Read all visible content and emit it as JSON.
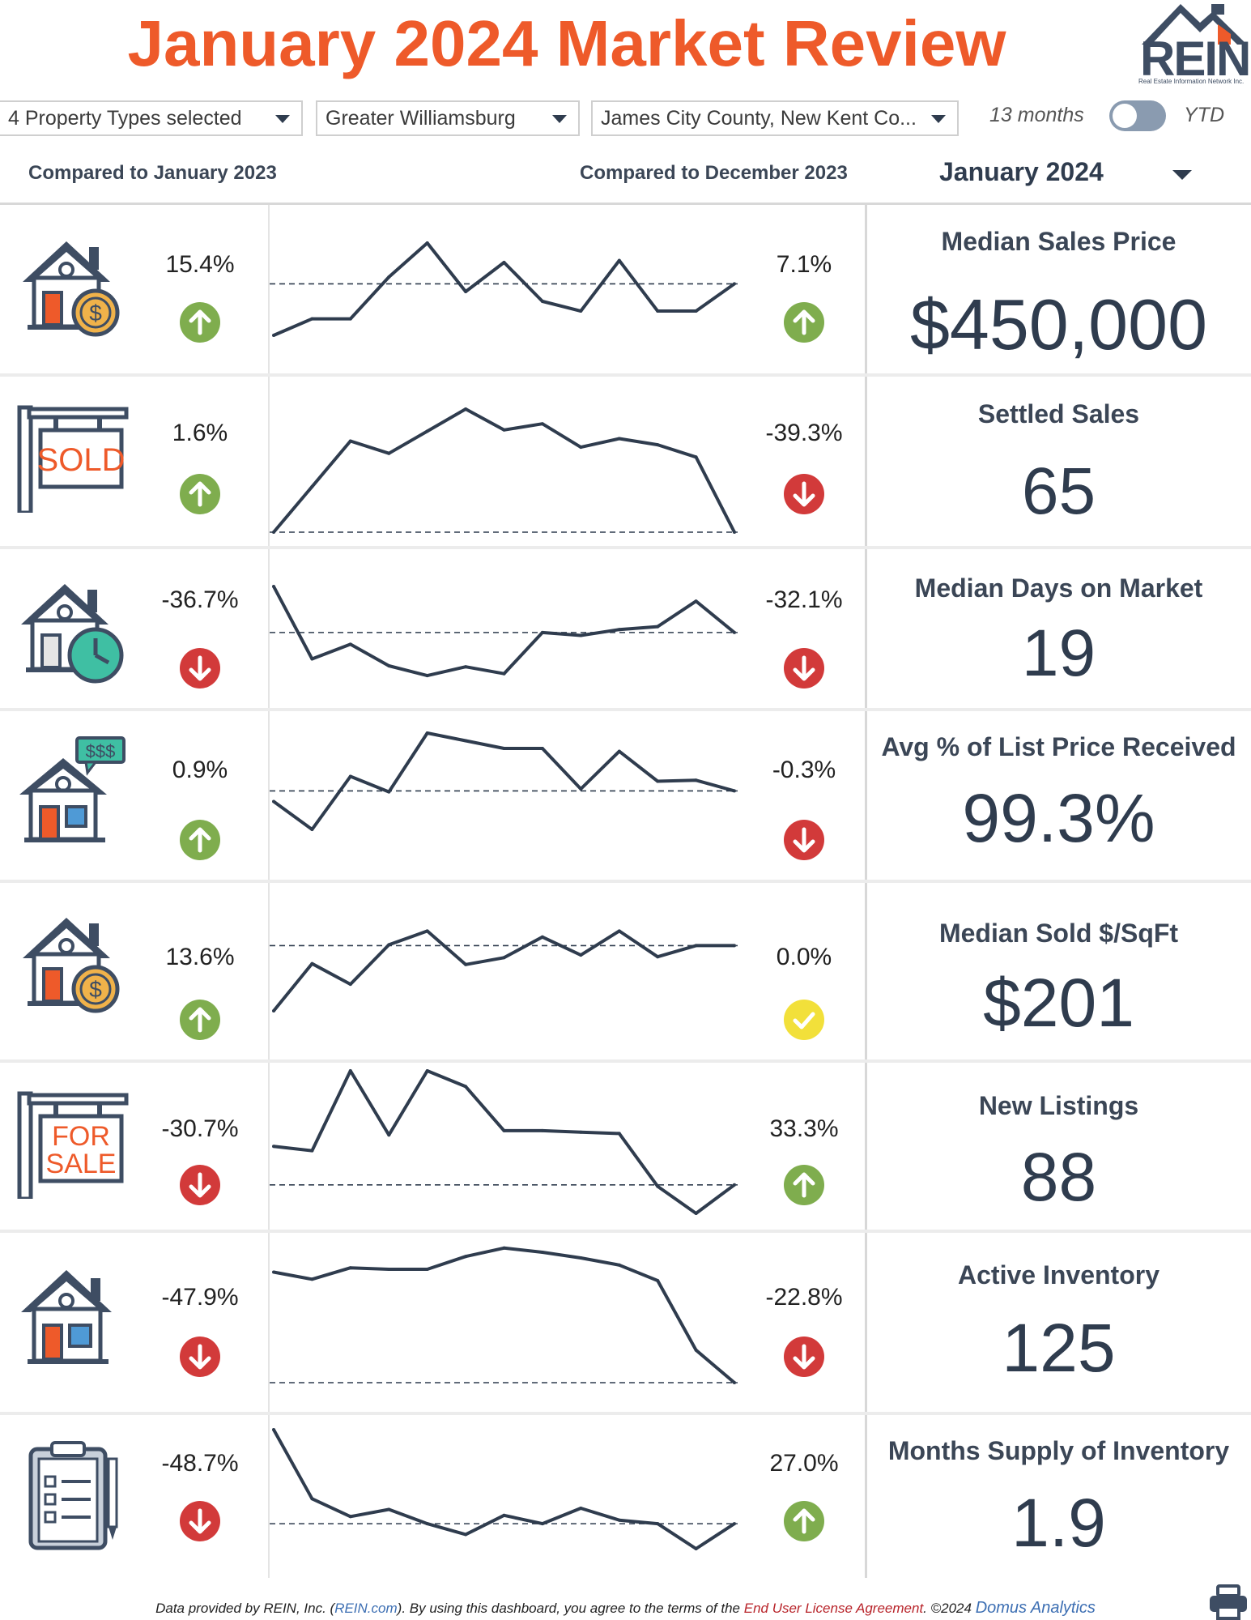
{
  "header": {
    "title": "January 2024 Market Review",
    "logo_text": "REIN",
    "logo_subtext": "Real Estate Information Network Inc."
  },
  "filters": {
    "property_types": "4 Property Types selected",
    "region": "Greater Williamsburg",
    "counties": "James City County, New Kent Co...",
    "toggle_left": "13 months",
    "toggle_right": "YTD"
  },
  "comparisons": {
    "left_label": "Compared to January 2023",
    "right_label": "Compared to December 2023",
    "month_select": "January 2024"
  },
  "colors": {
    "title": "#ee5a2a",
    "up": "#7fad4e",
    "down": "#d23a3a",
    "flat": "#f2e03a",
    "text": "#2f3c4e"
  },
  "metrics": [
    {
      "name": "Median Sales Price",
      "value": "$450,000",
      "yoy": "15.4%",
      "yoy_dir": "up",
      "mom": "7.1%",
      "mom_dir": "up",
      "icon": "house-dollar-icon"
    },
    {
      "name": "Settled Sales",
      "value": "65",
      "yoy": "1.6%",
      "yoy_dir": "up",
      "mom": "-39.3%",
      "mom_dir": "down",
      "icon": "sold-sign-icon"
    },
    {
      "name": "Median Days on Market",
      "value": "19",
      "yoy": "-36.7%",
      "yoy_dir": "down",
      "mom": "-32.1%",
      "mom_dir": "down",
      "icon": "house-clock-icon"
    },
    {
      "name": "Avg % of List Price Received",
      "value": "99.3%",
      "yoy": "0.9%",
      "yoy_dir": "up",
      "mom": "-0.3%",
      "mom_dir": "down",
      "icon": "house-price-tag-icon"
    },
    {
      "name": "Median Sold $/SqFt",
      "value": "$201",
      "yoy": "13.6%",
      "yoy_dir": "up",
      "mom": "0.0%",
      "mom_dir": "flat",
      "icon": "house-dollar-icon"
    },
    {
      "name": "New Listings",
      "value": "88",
      "yoy": "-30.7%",
      "yoy_dir": "down",
      "mom": "33.3%",
      "mom_dir": "up",
      "icon": "for-sale-sign-icon"
    },
    {
      "name": "Active Inventory",
      "value": "125",
      "yoy": "-47.9%",
      "yoy_dir": "down",
      "mom": "-22.8%",
      "mom_dir": "down",
      "icon": "house-icon"
    },
    {
      "name": "Months Supply of Inventory",
      "value": "1.9",
      "yoy": "-48.7%",
      "yoy_dir": "down",
      "mom": "27.0%",
      "mom_dir": "up",
      "icon": "clipboard-checklist-icon"
    }
  ],
  "chart_data": [
    {
      "type": "line",
      "title": "",
      "series": [
        {
          "values": [
            0.05,
            0.22,
            0.22,
            0.65,
            1.0,
            0.5,
            0.8,
            0.4,
            0.3,
            0.82,
            0.3,
            0.3,
            0.58
          ]
        }
      ],
      "baseline": 0.58
    },
    {
      "type": "line",
      "title": "",
      "series": [
        {
          "values": [
            0.0,
            0.37,
            0.74,
            0.64,
            0.82,
            1.0,
            0.83,
            0.88,
            0.69,
            0.76,
            0.71,
            0.61,
            0.0
          ]
        }
      ],
      "baseline": 0.0
    },
    {
      "type": "line",
      "title": "",
      "series": [
        {
          "values": [
            1.0,
            0.26,
            0.41,
            0.19,
            0.09,
            0.18,
            0.11,
            0.53,
            0.5,
            0.56,
            0.59,
            0.85,
            0.53
          ]
        }
      ],
      "baseline": 0.53
    },
    {
      "type": "line",
      "title": "",
      "series": [
        {
          "values": [
            0.29,
            0.0,
            0.55,
            0.39,
            1.0,
            0.92,
            0.84,
            0.84,
            0.42,
            0.81,
            0.5,
            0.51,
            0.4
          ]
        }
      ],
      "baseline": 0.4
    },
    {
      "type": "line",
      "title": "",
      "series": [
        {
          "values": [
            0.0,
            0.55,
            0.31,
            0.77,
            0.93,
            0.54,
            0.62,
            0.86,
            0.65,
            0.93,
            0.63,
            0.76,
            0.76
          ]
        }
      ],
      "baseline": 0.76
    },
    {
      "type": "line",
      "title": "",
      "series": [
        {
          "values": [
            0.47,
            0.44,
            1.0,
            0.55,
            1.0,
            0.89,
            0.58,
            0.58,
            0.57,
            0.56,
            0.19,
            0.0,
            0.2
          ]
        }
      ],
      "baseline": 0.2
    },
    {
      "type": "line",
      "title": "",
      "series": [
        {
          "values": [
            0.78,
            0.73,
            0.81,
            0.8,
            0.8,
            0.89,
            0.95,
            0.92,
            0.88,
            0.83,
            0.72,
            0.23,
            0.0
          ]
        }
      ],
      "baseline": 0.0
    },
    {
      "type": "line",
      "title": "",
      "series": [
        {
          "values": [
            1.0,
            0.42,
            0.27,
            0.33,
            0.21,
            0.12,
            0.28,
            0.21,
            0.34,
            0.24,
            0.21,
            0.0,
            0.21
          ]
        }
      ],
      "baseline": 0.21
    }
  ],
  "footer": {
    "prefix": "Data provided by REIN, Inc. (",
    "site": "REIN.com",
    "middle": ").  By using this dashboard, you agree to the terms of the ",
    "eula": "End User License Agreement",
    "copyright": ".  ©2024 ",
    "brand": "Domus Analytics"
  }
}
